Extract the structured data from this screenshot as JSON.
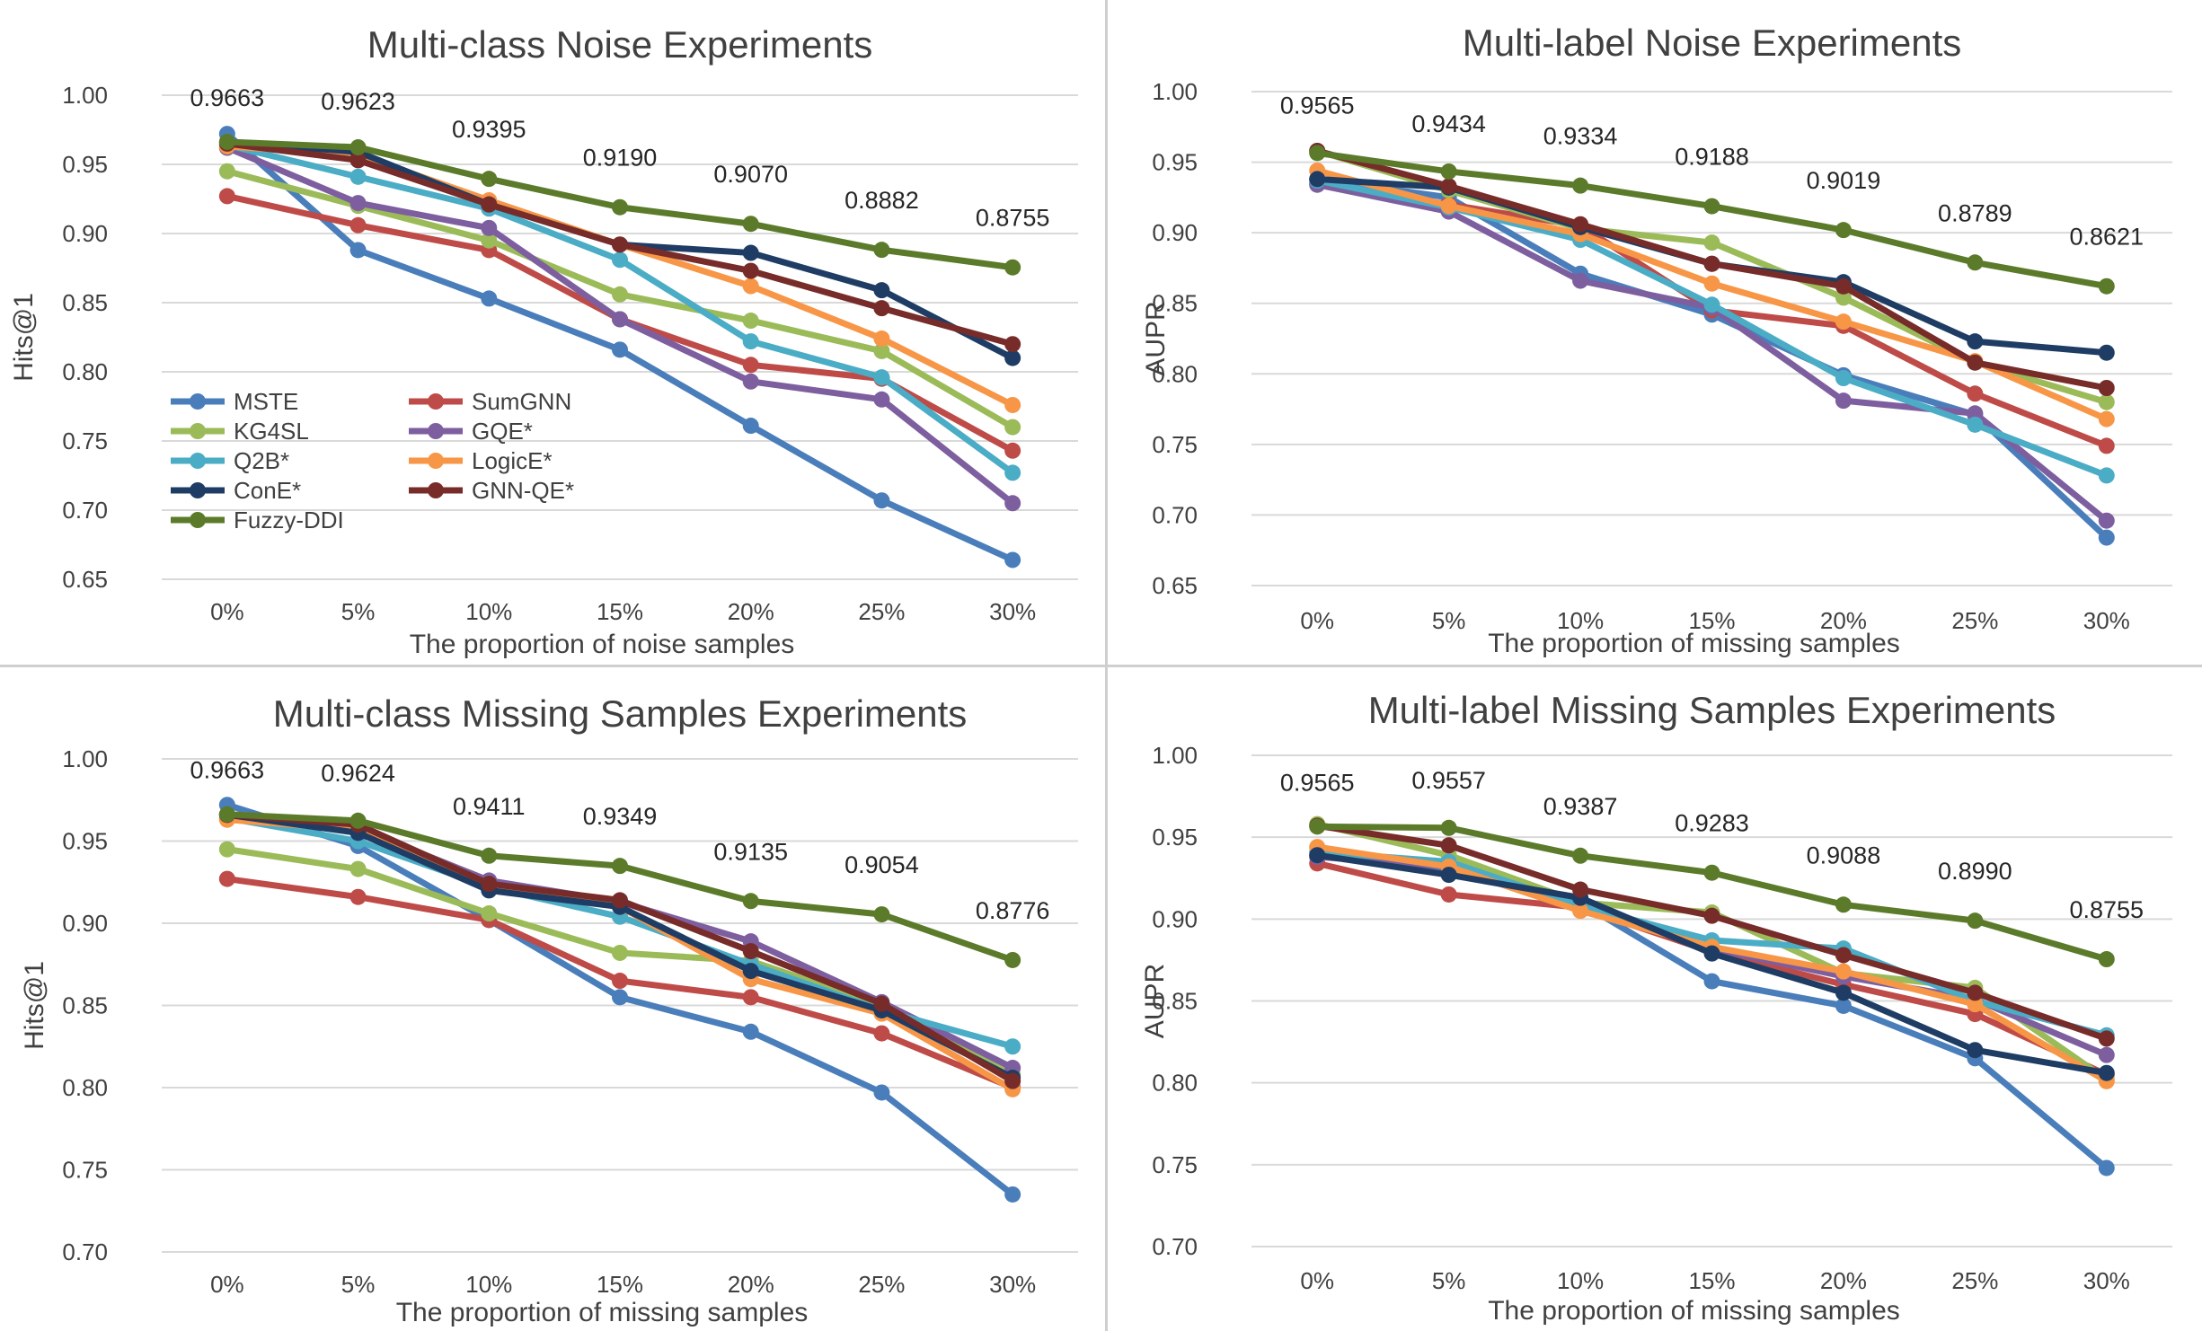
{
  "series_styles": [
    {
      "name": "MSTE",
      "color": "#4a7ebb"
    },
    {
      "name": "SumGNN",
      "color": "#be4b48"
    },
    {
      "name": "KG4SL",
      "color": "#9bbb59"
    },
    {
      "name": "GQE*",
      "color": "#7d5fa0"
    },
    {
      "name": "Q2B*",
      "color": "#4bacc6"
    },
    {
      "name": "LogicE*",
      "color": "#f79646"
    },
    {
      "name": "ConE*",
      "color": "#1f3d64"
    },
    {
      "name": "GNN-QE*",
      "color": "#772c2a"
    },
    {
      "name": "Fuzzy-DDI",
      "color": "#5b7b2b"
    }
  ],
  "chart_data": [
    {
      "type": "line",
      "title": "Multi-class Noise Experiments",
      "xlabel": "The proportion of noise samples",
      "ylabel": "Hits@1",
      "categories": [
        "0%",
        "5%",
        "10%",
        "15%",
        "20%",
        "25%",
        "30%"
      ],
      "ylim": [
        0.65,
        1.0
      ],
      "yticks": [
        "0.65",
        "0.70",
        "0.75",
        "0.80",
        "0.85",
        "0.90",
        "0.95",
        "1.00"
      ],
      "grid": true,
      "legend_position": "bottom-left",
      "series": [
        {
          "name": "MSTE",
          "values": [
            0.972,
            0.888,
            0.853,
            0.816,
            0.761,
            0.707,
            0.664
          ]
        },
        {
          "name": "SumGNN",
          "values": [
            0.927,
            0.906,
            0.888,
            0.838,
            0.805,
            0.795,
            0.743
          ]
        },
        {
          "name": "KG4SL",
          "values": [
            0.945,
            0.92,
            0.895,
            0.856,
            0.837,
            0.815,
            0.76
          ]
        },
        {
          "name": "GQE*",
          "values": [
            0.962,
            0.922,
            0.904,
            0.838,
            0.793,
            0.78,
            0.705
          ]
        },
        {
          "name": "Q2B*",
          "values": [
            0.964,
            0.941,
            0.918,
            0.881,
            0.822,
            0.796,
            0.727
          ]
        },
        {
          "name": "LogicE*",
          "values": [
            0.963,
            0.957,
            0.924,
            0.892,
            0.862,
            0.824,
            0.776
          ]
        },
        {
          "name": "ConE*",
          "values": [
            0.966,
            0.959,
            0.921,
            0.892,
            0.886,
            0.859,
            0.81
          ]
        },
        {
          "name": "GNN-QE*",
          "values": [
            0.965,
            0.953,
            0.921,
            0.892,
            0.873,
            0.846,
            0.82
          ]
        },
        {
          "name": "Fuzzy-DDI",
          "values": [
            0.9663,
            0.9623,
            0.9395,
            0.919,
            0.907,
            0.8882,
            0.8755
          ]
        }
      ],
      "annotations": [
        "0.9663",
        "0.9623",
        "0.9395",
        "0.9190",
        "0.9070",
        "0.8882",
        "0.8755"
      ]
    },
    {
      "type": "line",
      "title": "Multi-label Noise Experiments",
      "xlabel": "The proportion of missing samples",
      "ylabel": "AUPR",
      "categories": [
        "0%",
        "5%",
        "10%",
        "15%",
        "20%",
        "25%",
        "30%"
      ],
      "ylim": [
        0.65,
        1.0
      ],
      "yticks": [
        "0.65",
        "0.70",
        "0.75",
        "0.80",
        "0.85",
        "0.90",
        "0.95",
        "1.00"
      ],
      "grid": true,
      "series": [
        {
          "name": "MSTE",
          "values": [
            0.938,
            0.925,
            0.871,
            0.842,
            0.799,
            0.771,
            0.684
          ]
        },
        {
          "name": "SumGNN",
          "values": [
            0.935,
            0.92,
            0.905,
            0.845,
            0.834,
            0.786,
            0.749
          ]
        },
        {
          "name": "KG4SL",
          "values": [
            0.958,
            0.93,
            0.903,
            0.893,
            0.854,
            0.808,
            0.78
          ]
        },
        {
          "name": "GQE*",
          "values": [
            0.934,
            0.915,
            0.866,
            0.847,
            0.781,
            0.772,
            0.696
          ]
        },
        {
          "name": "Q2B*",
          "values": [
            0.937,
            0.918,
            0.895,
            0.849,
            0.797,
            0.764,
            0.728
          ]
        },
        {
          "name": "LogicE*",
          "values": [
            0.944,
            0.919,
            0.899,
            0.864,
            0.837,
            0.809,
            0.768
          ]
        },
        {
          "name": "ConE*",
          "values": [
            0.938,
            0.932,
            0.904,
            0.878,
            0.865,
            0.823,
            0.815
          ]
        },
        {
          "name": "GNN-QE*",
          "values": [
            0.958,
            0.933,
            0.906,
            0.878,
            0.862,
            0.808,
            0.79
          ]
        },
        {
          "name": "Fuzzy-DDI",
          "values": [
            0.9565,
            0.9434,
            0.9334,
            0.9188,
            0.9019,
            0.8789,
            0.8621
          ]
        }
      ],
      "annotations": [
        "0.9565",
        "0.9434",
        "0.9334",
        "0.9188",
        "0.9019",
        "0.8789",
        "0.8621"
      ]
    },
    {
      "type": "line",
      "title": "Multi-class Missing Samples Experiments",
      "xlabel": "The proportion of missing samples",
      "ylabel": "Hits@1",
      "categories": [
        "0%",
        "5%",
        "10%",
        "15%",
        "20%",
        "25%",
        "30%"
      ],
      "ylim": [
        0.7,
        1.0
      ],
      "yticks": [
        "0.70",
        "0.75",
        "0.80",
        "0.85",
        "0.90",
        "0.95",
        "1.00"
      ],
      "grid": true,
      "series": [
        {
          "name": "MSTE",
          "values": [
            0.972,
            0.947,
            0.902,
            0.855,
            0.834,
            0.797,
            0.735
          ]
        },
        {
          "name": "SumGNN",
          "values": [
            0.927,
            0.916,
            0.902,
            0.865,
            0.855,
            0.833,
            0.8
          ]
        },
        {
          "name": "KG4SL",
          "values": [
            0.945,
            0.933,
            0.906,
            0.882,
            0.877,
            0.85,
            0.808
          ]
        },
        {
          "name": "GQE*",
          "values": [
            0.966,
            0.958,
            0.926,
            0.913,
            0.889,
            0.852,
            0.812
          ]
        },
        {
          "name": "Q2B*",
          "values": [
            0.964,
            0.95,
            0.922,
            0.904,
            0.875,
            0.847,
            0.825
          ]
        },
        {
          "name": "LogicE*",
          "values": [
            0.963,
            0.957,
            0.923,
            0.91,
            0.866,
            0.845,
            0.799
          ]
        },
        {
          "name": "ConE*",
          "values": [
            0.966,
            0.955,
            0.92,
            0.91,
            0.871,
            0.847,
            0.806
          ]
        },
        {
          "name": "GNN-QE*",
          "values": [
            0.966,
            0.96,
            0.924,
            0.914,
            0.883,
            0.851,
            0.804
          ]
        },
        {
          "name": "Fuzzy-DDI",
          "values": [
            0.9663,
            0.9624,
            0.9411,
            0.9349,
            0.9135,
            0.9054,
            0.8776
          ]
        }
      ],
      "annotations": [
        "0.9663",
        "0.9624",
        "0.9411",
        "0.9349",
        "0.9135",
        "0.9054",
        "0.8776"
      ]
    },
    {
      "type": "line",
      "title": "Multi-label Missing Samples Experiments",
      "xlabel": "The proportion of missing samples",
      "ylabel": "AUPR",
      "categories": [
        "0%",
        "5%",
        "10%",
        "15%",
        "20%",
        "25%",
        "30%"
      ],
      "ylim": [
        0.7,
        1.0
      ],
      "yticks": [
        "0.70",
        "0.75",
        "0.80",
        "0.85",
        "0.90",
        "0.95",
        "1.00"
      ],
      "grid": true,
      "series": [
        {
          "name": "MSTE",
          "values": [
            0.939,
            0.929,
            0.91,
            0.862,
            0.847,
            0.815,
            0.748
          ]
        },
        {
          "name": "SumGNN",
          "values": [
            0.934,
            0.915,
            0.907,
            0.88,
            0.86,
            0.842,
            0.805
          ]
        },
        {
          "name": "KG4SL",
          "values": [
            0.958,
            0.939,
            0.91,
            0.904,
            0.867,
            0.858,
            0.802
          ]
        },
        {
          "name": "GQE*",
          "values": [
            0.938,
            0.932,
            0.91,
            0.882,
            0.865,
            0.851,
            0.817
          ]
        },
        {
          "name": "Q2B*",
          "values": [
            0.941,
            0.935,
            0.908,
            0.887,
            0.882,
            0.85,
            0.829
          ]
        },
        {
          "name": "LogicE*",
          "values": [
            0.944,
            0.932,
            0.905,
            0.883,
            0.868,
            0.848,
            0.801
          ]
        },
        {
          "name": "ConE*",
          "values": [
            0.939,
            0.927,
            0.913,
            0.879,
            0.855,
            0.82,
            0.806
          ]
        },
        {
          "name": "GNN-QE*",
          "values": [
            0.957,
            0.945,
            0.918,
            0.902,
            0.878,
            0.855,
            0.827
          ]
        },
        {
          "name": "Fuzzy-DDI",
          "values": [
            0.9565,
            0.9557,
            0.9387,
            0.9283,
            0.9088,
            0.899,
            0.8755
          ]
        }
      ],
      "annotations": [
        "0.9565",
        "0.9557",
        "0.9387",
        "0.9283",
        "0.9088",
        "0.8990",
        "0.8755"
      ]
    }
  ]
}
